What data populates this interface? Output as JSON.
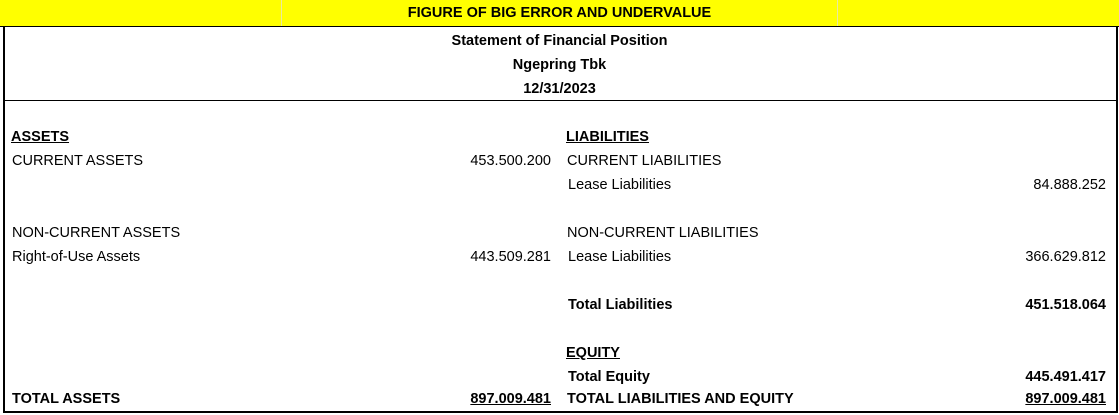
{
  "banner": {
    "title": "FIGURE OF BIG ERROR AND UNDERVALUE"
  },
  "header": {
    "title": "Statement of Financial Position",
    "company": "Ngepring Tbk",
    "date": "12/31/2023"
  },
  "assets": {
    "heading": "ASSETS",
    "current_label": "CURRENT ASSETS",
    "current_value": "453.500.200",
    "noncurrent_label": "NON-CURRENT ASSETS",
    "rou_label": "Right-of-Use Assets",
    "rou_value": "443.509.281",
    "total_label": "TOTAL ASSETS",
    "total_value": "897.009.481"
  },
  "liabilities": {
    "heading": "LIABILITIES",
    "current_label": "CURRENT LIABILITIES",
    "current_lease_label": "Lease Liabilities",
    "current_lease_value": "84.888.252",
    "noncurrent_label": "NON-CURRENT LIABILITIES",
    "noncurrent_lease_label": "Lease Liabilities",
    "noncurrent_lease_value": "366.629.812",
    "total_label": "Total Liabilities",
    "total_value": "451.518.064"
  },
  "equity": {
    "heading": "EQUITY",
    "total_label": "Total Equity",
    "total_value": "445.491.417",
    "grand_total_label": "TOTAL LIABILITIES AND EQUITY",
    "grand_total_value": "897.009.481"
  },
  "colors": {
    "banner": "#ffff00",
    "text": "#000000"
  }
}
